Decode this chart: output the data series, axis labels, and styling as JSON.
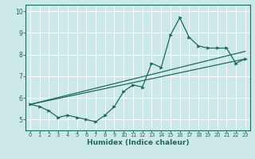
{
  "title": "",
  "xlabel": "Humidex (Indice chaleur)",
  "xlim": [
    -0.5,
    23.5
  ],
  "ylim": [
    4.5,
    10.3
  ],
  "xticks": [
    0,
    1,
    2,
    3,
    4,
    5,
    6,
    7,
    8,
    9,
    10,
    11,
    12,
    13,
    14,
    15,
    16,
    17,
    18,
    19,
    20,
    21,
    22,
    23
  ],
  "yticks": [
    5,
    6,
    7,
    8,
    9,
    10
  ],
  "bg_color": "#cce8e8",
  "line_color": "#1a6b5a",
  "grid_color": "#ffffff",
  "line1": {
    "x": [
      0,
      1,
      2,
      3,
      4,
      5,
      6,
      7,
      8,
      9,
      10,
      11,
      12,
      13,
      14,
      15,
      16,
      17,
      18,
      19,
      20,
      21,
      22,
      23
    ],
    "y": [
      5.7,
      5.6,
      5.4,
      5.1,
      5.2,
      5.1,
      5.0,
      4.9,
      5.2,
      5.6,
      6.3,
      6.6,
      6.5,
      7.6,
      7.4,
      8.9,
      9.7,
      8.8,
      8.4,
      8.3,
      8.3,
      8.3,
      7.6,
      7.8
    ]
  },
  "line2": {
    "x": [
      0,
      23
    ],
    "y": [
      5.7,
      7.8
    ]
  },
  "line3": {
    "x": [
      0,
      23
    ],
    "y": [
      5.7,
      8.15
    ]
  }
}
